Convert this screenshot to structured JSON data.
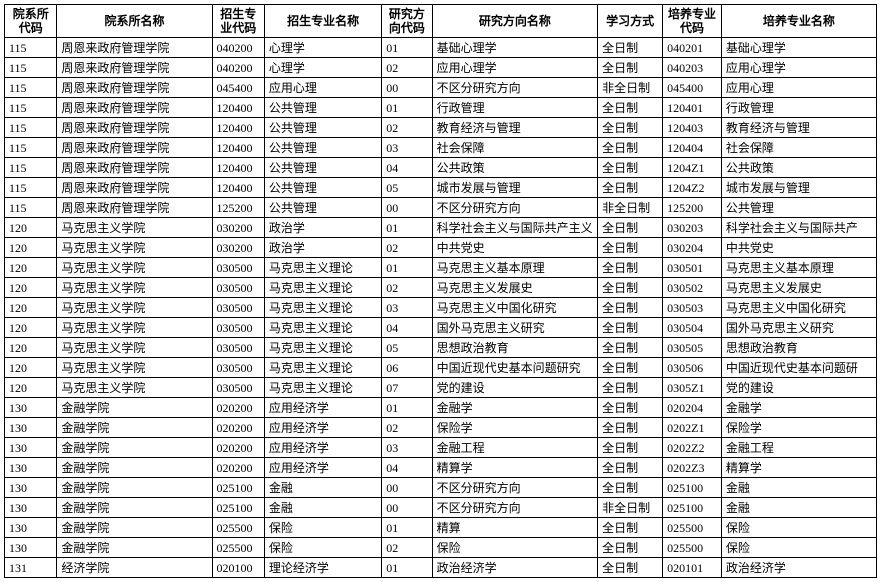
{
  "columns": [
    {
      "key": "dept_code",
      "label": "院系所\n代码",
      "class": "col-dept-code"
    },
    {
      "key": "dept_name",
      "label": "院系所名称",
      "class": "col-dept-name"
    },
    {
      "key": "major_code",
      "label": "招生专\n业代码",
      "class": "col-major-code"
    },
    {
      "key": "major_name",
      "label": "招生专业名称",
      "class": "col-major-name"
    },
    {
      "key": "dir_code",
      "label": "研究方\n向代码",
      "class": "col-dir-code"
    },
    {
      "key": "dir_name",
      "label": "研究方向名称",
      "class": "col-dir-name"
    },
    {
      "key": "study_mode",
      "label": "学习方式",
      "class": "col-study-mode"
    },
    {
      "key": "train_code",
      "label": "培养专业\n代码",
      "class": "col-train-code"
    },
    {
      "key": "train_name",
      "label": "培养专业名称",
      "class": "col-train-name"
    }
  ],
  "rows": [
    [
      "115",
      "周恩来政府管理学院",
      "040200",
      "心理学",
      "01",
      "基础心理学",
      "全日制",
      "040201",
      "基础心理学"
    ],
    [
      "115",
      "周恩来政府管理学院",
      "040200",
      "心理学",
      "02",
      "应用心理学",
      "全日制",
      "040203",
      "应用心理学"
    ],
    [
      "115",
      "周恩来政府管理学院",
      "045400",
      "应用心理",
      "00",
      "不区分研究方向",
      "非全日制",
      "045400",
      "应用心理"
    ],
    [
      "115",
      "周恩来政府管理学院",
      "120400",
      "公共管理",
      "01",
      "行政管理",
      "全日制",
      "120401",
      "行政管理"
    ],
    [
      "115",
      "周恩来政府管理学院",
      "120400",
      "公共管理",
      "02",
      "教育经济与管理",
      "全日制",
      "120403",
      "教育经济与管理"
    ],
    [
      "115",
      "周恩来政府管理学院",
      "120400",
      "公共管理",
      "03",
      "社会保障",
      "全日制",
      "120404",
      "社会保障"
    ],
    [
      "115",
      "周恩来政府管理学院",
      "120400",
      "公共管理",
      "04",
      "公共政策",
      "全日制",
      "1204Z1",
      "公共政策"
    ],
    [
      "115",
      "周恩来政府管理学院",
      "120400",
      "公共管理",
      "05",
      "城市发展与管理",
      "全日制",
      "1204Z2",
      "城市发展与管理"
    ],
    [
      "115",
      "周恩来政府管理学院",
      "125200",
      "公共管理",
      "00",
      "不区分研究方向",
      "非全日制",
      "125200",
      "公共管理"
    ],
    [
      "120",
      "马克思主义学院",
      "030200",
      "政治学",
      "01",
      "科学社会主义与国际共产主义",
      "全日制",
      "030203",
      "科学社会主义与国际共产"
    ],
    [
      "120",
      "马克思主义学院",
      "030200",
      "政治学",
      "02",
      "中共党史",
      "全日制",
      "030204",
      "中共党史"
    ],
    [
      "120",
      "马克思主义学院",
      "030500",
      "马克思主义理论",
      "01",
      "马克思主义基本原理",
      "全日制",
      "030501",
      "马克思主义基本原理"
    ],
    [
      "120",
      "马克思主义学院",
      "030500",
      "马克思主义理论",
      "02",
      "马克思主义发展史",
      "全日制",
      "030502",
      "马克思主义发展史"
    ],
    [
      "120",
      "马克思主义学院",
      "030500",
      "马克思主义理论",
      "03",
      "马克思主义中国化研究",
      "全日制",
      "030503",
      "马克思主义中国化研究"
    ],
    [
      "120",
      "马克思主义学院",
      "030500",
      "马克思主义理论",
      "04",
      "国外马克思主义研究",
      "全日制",
      "030504",
      "国外马克思主义研究"
    ],
    [
      "120",
      "马克思主义学院",
      "030500",
      "马克思主义理论",
      "05",
      "思想政治教育",
      "全日制",
      "030505",
      "思想政治教育"
    ],
    [
      "120",
      "马克思主义学院",
      "030500",
      "马克思主义理论",
      "06",
      "中国近现代史基本问题研究",
      "全日制",
      "030506",
      "中国近现代史基本问题研"
    ],
    [
      "120",
      "马克思主义学院",
      "030500",
      "马克思主义理论",
      "07",
      "党的建设",
      "全日制",
      "0305Z1",
      "党的建设"
    ],
    [
      "130",
      "金融学院",
      "020200",
      "应用经济学",
      "01",
      "金融学",
      "全日制",
      "020204",
      "金融学"
    ],
    [
      "130",
      "金融学院",
      "020200",
      "应用经济学",
      "02",
      "保险学",
      "全日制",
      "0202Z1",
      "保险学"
    ],
    [
      "130",
      "金融学院",
      "020200",
      "应用经济学",
      "03",
      "金融工程",
      "全日制",
      "0202Z2",
      "金融工程"
    ],
    [
      "130",
      "金融学院",
      "020200",
      "应用经济学",
      "04",
      "精算学",
      "全日制",
      "0202Z3",
      "精算学"
    ],
    [
      "130",
      "金融学院",
      "025100",
      "金融",
      "00",
      "不区分研究方向",
      "全日制",
      "025100",
      "金融"
    ],
    [
      "130",
      "金融学院",
      "025100",
      "金融",
      "00",
      "不区分研究方向",
      "非全日制",
      "025100",
      "金融"
    ],
    [
      "130",
      "金融学院",
      "025500",
      "保险",
      "01",
      "精算",
      "全日制",
      "025500",
      "保险"
    ],
    [
      "130",
      "金融学院",
      "025500",
      "保险",
      "02",
      "保险",
      "全日制",
      "025500",
      "保险"
    ],
    [
      "131",
      "经济学院",
      "020100",
      "理论经济学",
      "01",
      "政治经济学",
      "全日制",
      "020101",
      "政治经济学"
    ]
  ]
}
